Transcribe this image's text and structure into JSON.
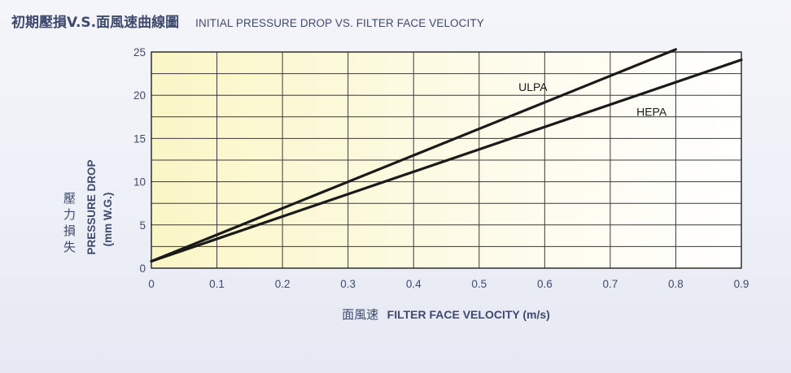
{
  "header": {
    "title_cn": "初期壓損V.S.面風速曲線圖",
    "title_en": "INITIAL PRESSURE DROP VS. FILTER FACE VELOCITY"
  },
  "chart_data": {
    "type": "line",
    "title": "初期壓損V.S.面風速曲線圖  INITIAL PRESSURE DROP VS. FILTER FACE VELOCITY",
    "xlabel_cn": "面風速",
    "xlabel_en": "FILTER FACE VELOCITY (m/s)",
    "ylabel_cn": "壓力損失",
    "ylabel_en_1": "PRESSURE DROP",
    "ylabel_en_2": "(mm W.G.)",
    "xlim": [
      0,
      0.9
    ],
    "ylim": [
      0,
      25
    ],
    "x_ticks": [
      0,
      0.1,
      0.2,
      0.3,
      0.4,
      0.5,
      0.6,
      0.7,
      0.8,
      0.9
    ],
    "x_tick_labels": [
      "0",
      "0.1",
      "0.2",
      "0.3",
      "0.4",
      "0.5",
      "0.6",
      "0.7",
      "0.8",
      "0.9"
    ],
    "y_ticks": [
      0,
      5,
      10,
      15,
      20,
      25
    ],
    "y_tick_labels": [
      "0",
      "5",
      "10",
      "15",
      "20",
      "25"
    ],
    "grid": true,
    "series": [
      {
        "name": "ULPA",
        "color": "#1a1a1a",
        "x": [
          0,
          0.8
        ],
        "y": [
          0.8,
          25.3
        ],
        "label_at": [
          0.56,
          20.5
        ]
      },
      {
        "name": "HEPA",
        "color": "#1a1a1a",
        "x": [
          0,
          0.9
        ],
        "y": [
          0.8,
          24.1
        ],
        "label_at": [
          0.74,
          17.6
        ]
      }
    ]
  }
}
